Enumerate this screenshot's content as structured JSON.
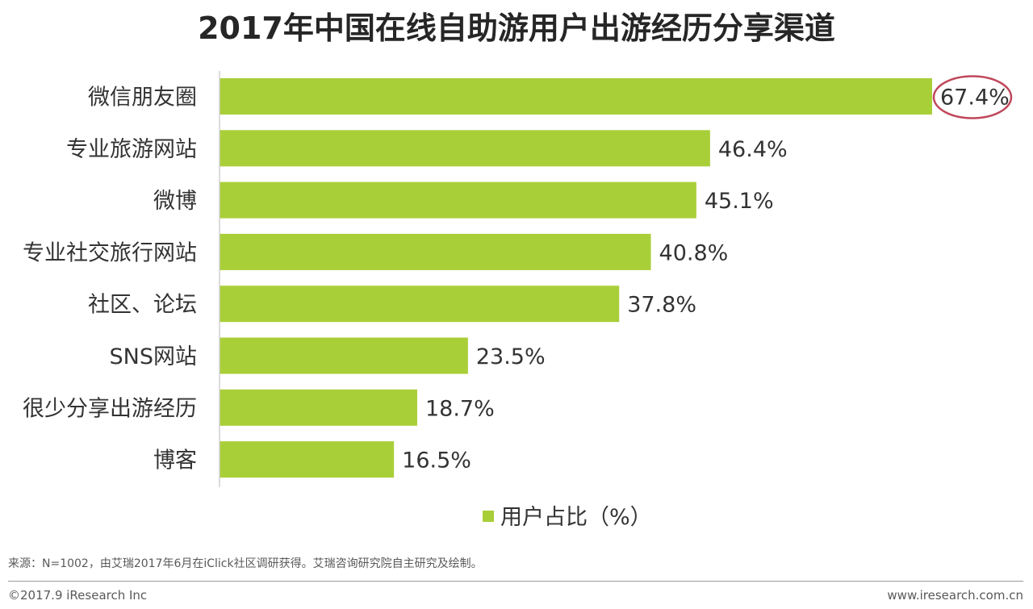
{
  "header": {
    "title": "2017年中国在线自助游用户出游经历分享渠道"
  },
  "chart_data": {
    "type": "bar",
    "orientation": "horizontal",
    "categories": [
      "微信朋友圈",
      "专业旅游网站",
      "微博",
      "专业社交旅行网站",
      "社区、论坛",
      "SNS网站",
      "很少分享出游经历",
      "博客"
    ],
    "series": [
      {
        "name": "用户占比（%）",
        "values": [
          67.4,
          46.4,
          45.1,
          40.8,
          37.8,
          23.5,
          18.7,
          16.5
        ]
      }
    ],
    "value_labels": [
      "67.4%",
      "46.4%",
      "45.1%",
      "40.8%",
      "37.8%",
      "23.5%",
      "18.7%",
      "16.5%"
    ],
    "xlim": [
      0,
      70
    ],
    "highlight": "微信朋友圈",
    "legend_position": "bottom",
    "grid": false,
    "bar_color": "#a9cf38",
    "highlight_color": "#c0475a"
  },
  "footer": {
    "source": "来源：N=1002，由艾瑞2017年6月在iClick社区调研获得。艾瑞咨询研究院自主研究及绘制。",
    "copyright": "©2017.9 iResearch Inc",
    "website": "www.iresearch.com.cn"
  }
}
